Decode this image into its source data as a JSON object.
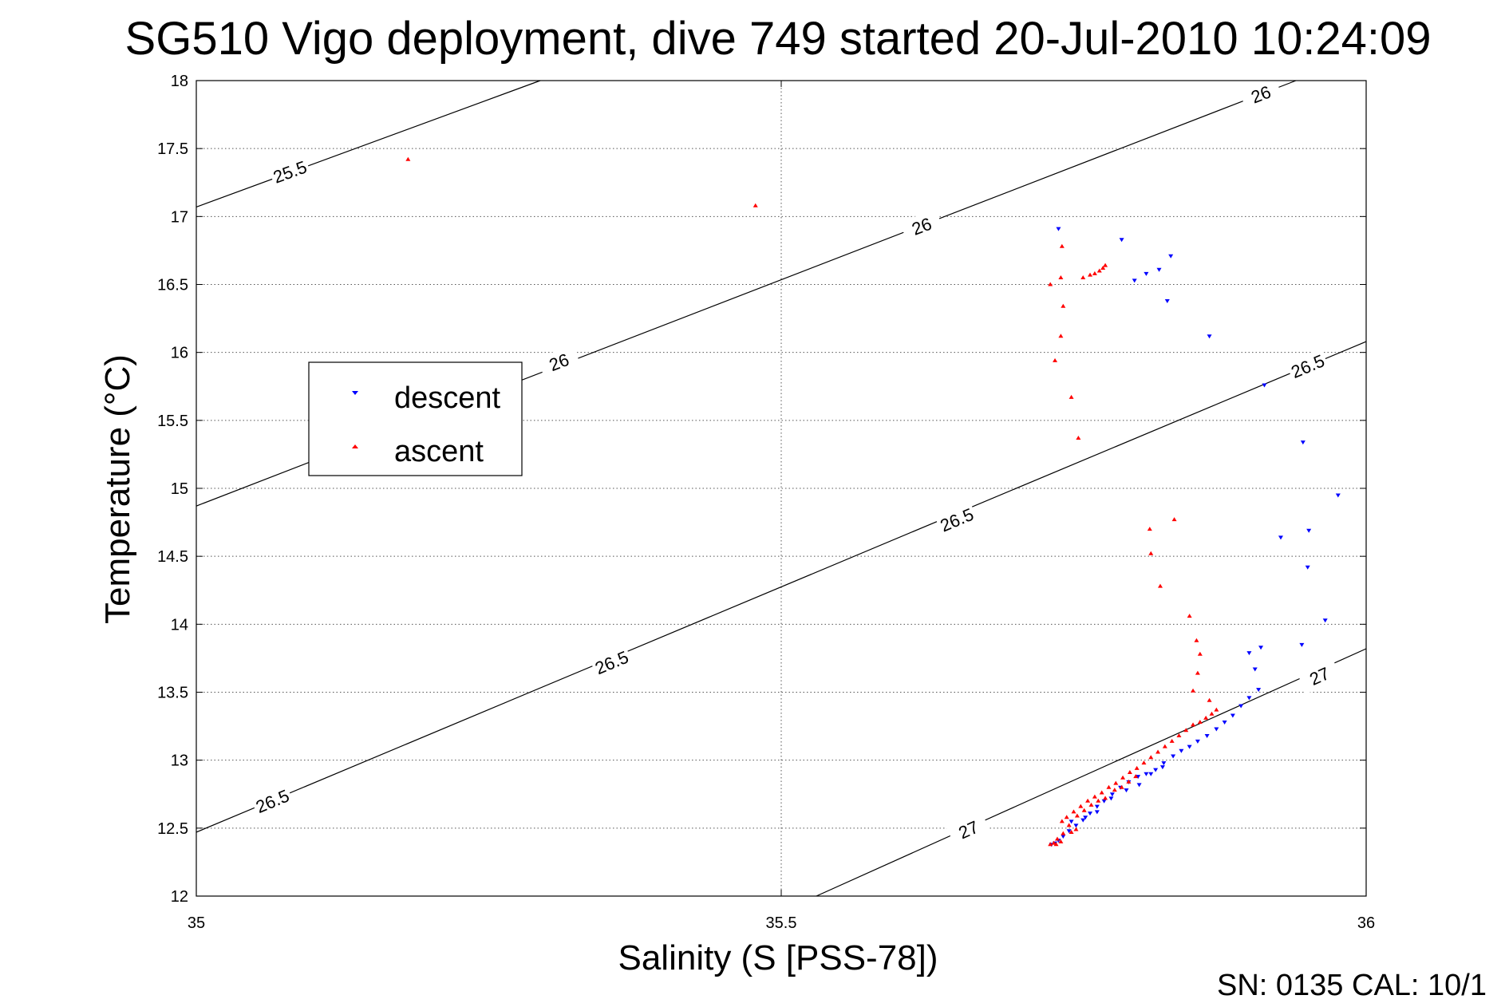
{
  "chart_data": {
    "type": "scatter",
    "title": "SG510 Vigo deployment, dive 749 started 20-Jul-2010 10:24:09",
    "xlabel": "Salinity (S [PSS-78])",
    "ylabel": "Temperature (°C)",
    "xlim": [
      35,
      36
    ],
    "ylim": [
      12,
      18
    ],
    "x_ticks": [
      "35",
      "35.5",
      "36"
    ],
    "y_ticks": [
      "12",
      "12.5",
      "13",
      "13.5",
      "14",
      "14.5",
      "15",
      "15.5",
      "16",
      "16.5",
      "17",
      "17.5",
      "18"
    ],
    "grid": true,
    "legend_position": "left",
    "contours": [
      {
        "label": "25.5",
        "points": [
          [
            35,
            17.07
          ],
          [
            35.294,
            18.0
          ]
        ],
        "label_positions": [
          [
            35.08,
            17.33
          ]
        ]
      },
      {
        "label": "26",
        "points": [
          [
            35,
            14.87
          ],
          [
            35.94,
            18.0
          ]
        ],
        "label_positions": [
          [
            35.31,
            15.93
          ],
          [
            35.62,
            16.93
          ],
          [
            35.91,
            17.9
          ]
        ]
      },
      {
        "label": "26.5",
        "points": [
          [
            35,
            12.47
          ],
          [
            36,
            16.08
          ]
        ],
        "label_positions": [
          [
            35.065,
            12.7
          ],
          [
            35.355,
            13.72
          ],
          [
            35.65,
            14.77
          ],
          [
            35.95,
            15.9
          ]
        ]
      },
      {
        "label": "27",
        "points": [
          [
            35.53,
            12.0
          ],
          [
            36,
            13.82
          ]
        ],
        "label_positions": [
          [
            35.66,
            12.49
          ],
          [
            35.96,
            13.62
          ]
        ]
      }
    ],
    "series": [
      {
        "name": "descent",
        "color": "#0000ff",
        "marker": "triangle-down",
        "points": [
          [
            35.737,
            16.91
          ],
          [
            35.791,
            16.83
          ],
          [
            35.802,
            16.53
          ],
          [
            35.812,
            16.58
          ],
          [
            35.823,
            16.61
          ],
          [
            35.833,
            16.71
          ],
          [
            35.83,
            16.38
          ],
          [
            35.866,
            16.12
          ],
          [
            35.913,
            15.76
          ],
          [
            35.946,
            15.34
          ],
          [
            35.976,
            14.95
          ],
          [
            35.951,
            14.69
          ],
          [
            35.95,
            14.42
          ],
          [
            35.927,
            14.64
          ],
          [
            35.965,
            14.03
          ],
          [
            35.945,
            13.85
          ],
          [
            35.91,
            13.83
          ],
          [
            35.9,
            13.79
          ],
          [
            35.905,
            13.67
          ],
          [
            35.908,
            13.52
          ],
          [
            35.9,
            13.46
          ],
          [
            35.893,
            13.4
          ],
          [
            35.886,
            13.33
          ],
          [
            35.879,
            13.28
          ],
          [
            35.872,
            13.23
          ],
          [
            35.864,
            13.18
          ],
          [
            35.856,
            13.14
          ],
          [
            35.849,
            13.1
          ],
          [
            35.842,
            13.07
          ],
          [
            35.835,
            13.03
          ],
          [
            35.827,
            12.98
          ],
          [
            35.82,
            12.93
          ],
          [
            35.812,
            12.9
          ],
          [
            35.805,
            12.88
          ],
          [
            35.797,
            12.84
          ],
          [
            35.79,
            12.8
          ],
          [
            35.783,
            12.75
          ],
          [
            35.776,
            12.7
          ],
          [
            35.77,
            12.66
          ],
          [
            35.764,
            12.61
          ],
          [
            35.758,
            12.56
          ],
          [
            35.752,
            12.52
          ],
          [
            35.746,
            12.48
          ],
          [
            35.741,
            12.44
          ],
          [
            35.737,
            12.41
          ],
          [
            35.734,
            12.39
          ],
          [
            35.731,
            12.38
          ],
          [
            35.748,
            12.55
          ],
          [
            35.76,
            12.58
          ],
          [
            35.77,
            12.62
          ],
          [
            35.782,
            12.72
          ],
          [
            35.795,
            12.78
          ],
          [
            35.806,
            12.82
          ],
          [
            35.816,
            12.9
          ],
          [
            35.826,
            12.95
          ]
        ]
      },
      {
        "name": "ascent",
        "color": "#ff0000",
        "marker": "triangle-up",
        "points": [
          [
            35.181,
            17.42
          ],
          [
            35.478,
            17.08
          ],
          [
            35.74,
            16.78
          ],
          [
            35.739,
            16.55
          ],
          [
            35.73,
            16.5
          ],
          [
            35.741,
            16.34
          ],
          [
            35.739,
            16.12
          ],
          [
            35.734,
            15.94
          ],
          [
            35.748,
            15.67
          ],
          [
            35.754,
            15.37
          ],
          [
            35.758,
            16.55
          ],
          [
            35.764,
            16.57
          ],
          [
            35.768,
            16.58
          ],
          [
            35.772,
            16.6
          ],
          [
            35.775,
            16.62
          ],
          [
            35.777,
            16.64
          ],
          [
            35.815,
            14.7
          ],
          [
            35.816,
            14.52
          ],
          [
            35.824,
            14.28
          ],
          [
            35.836,
            14.77
          ],
          [
            35.849,
            14.06
          ],
          [
            35.855,
            13.88
          ],
          [
            35.858,
            13.78
          ],
          [
            35.856,
            13.64
          ],
          [
            35.852,
            13.51
          ],
          [
            35.866,
            13.44
          ],
          [
            35.872,
            13.37
          ],
          [
            35.868,
            13.34
          ],
          [
            35.863,
            13.31
          ],
          [
            35.858,
            13.28
          ],
          [
            35.852,
            13.26
          ],
          [
            35.846,
            13.22
          ],
          [
            35.84,
            13.18
          ],
          [
            35.834,
            13.14
          ],
          [
            35.828,
            13.1
          ],
          [
            35.822,
            13.06
          ],
          [
            35.816,
            13.02
          ],
          [
            35.81,
            12.98
          ],
          [
            35.804,
            12.94
          ],
          [
            35.798,
            12.91
          ],
          [
            35.792,
            12.87
          ],
          [
            35.786,
            12.83
          ],
          [
            35.78,
            12.8
          ],
          [
            35.774,
            12.76
          ],
          [
            35.768,
            12.73
          ],
          [
            35.762,
            12.7
          ],
          [
            35.756,
            12.66
          ],
          [
            35.75,
            12.62
          ],
          [
            35.744,
            12.58
          ],
          [
            35.74,
            12.55
          ],
          [
            35.746,
            12.52
          ],
          [
            35.752,
            12.49
          ],
          [
            35.748,
            12.47
          ],
          [
            35.741,
            12.46
          ],
          [
            35.736,
            12.42
          ],
          [
            35.733,
            12.39
          ],
          [
            35.73,
            12.38
          ],
          [
            35.735,
            12.38
          ],
          [
            35.739,
            12.4
          ],
          [
            35.777,
            12.72
          ],
          [
            35.771,
            12.7
          ],
          [
            35.765,
            12.67
          ],
          [
            35.759,
            12.63
          ],
          [
            35.753,
            12.59
          ],
          [
            35.785,
            12.78
          ],
          [
            35.791,
            12.8
          ],
          [
            35.797,
            12.84
          ],
          [
            35.803,
            12.88
          ]
        ]
      }
    ]
  },
  "footer": {
    "text": "SN: 0135  CAL: 10/1"
  }
}
